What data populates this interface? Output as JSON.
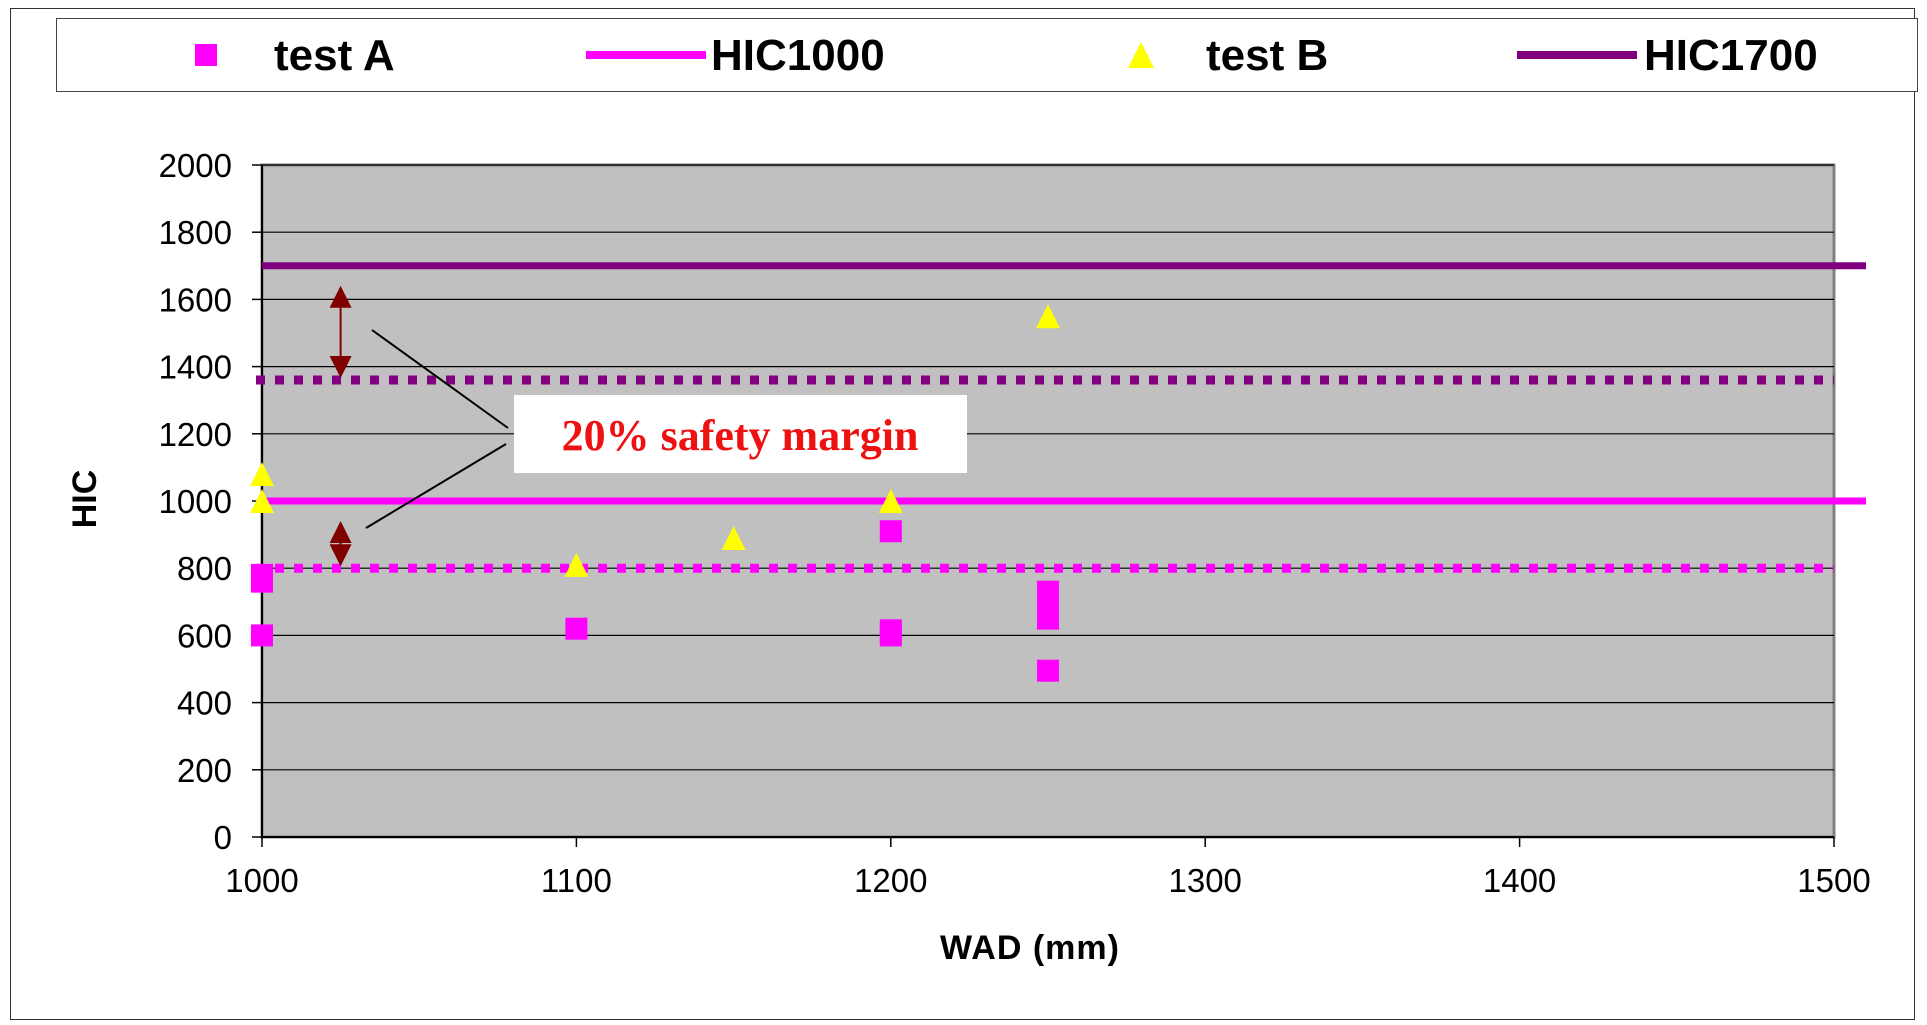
{
  "chart_data": {
    "type": "scatter",
    "xlabel": "WAD (mm)",
    "ylabel": "HIC",
    "xlim": [
      1000,
      1500
    ],
    "ylim": [
      0,
      2000
    ],
    "x_ticks": [
      1000,
      1100,
      1200,
      1300,
      1400,
      1500
    ],
    "y_ticks": [
      0,
      200,
      400,
      600,
      800,
      1000,
      1200,
      1400,
      1600,
      1800,
      2000
    ],
    "grid": "horizontal",
    "legend_position": "top",
    "plot_background": "#c0c0c0",
    "series": [
      {
        "name": "test A",
        "kind": "scatter",
        "marker": "square",
        "color": "#ff00ff",
        "points": [
          [
            1000,
            600
          ],
          [
            1000,
            760
          ],
          [
            1000,
            780
          ],
          [
            1100,
            620
          ],
          [
            1200,
            910
          ],
          [
            1200,
            600
          ],
          [
            1200,
            615
          ],
          [
            1250,
            730
          ],
          [
            1250,
            680
          ],
          [
            1250,
            650
          ],
          [
            1250,
            495
          ]
        ]
      },
      {
        "name": "HIC1000",
        "kind": "line",
        "color": "#ff00ff",
        "y": 1000
      },
      {
        "name": "test B",
        "kind": "scatter",
        "marker": "triangle",
        "color": "#ffff00",
        "points": [
          [
            1000,
            1080
          ],
          [
            1000,
            1000
          ],
          [
            1100,
            810
          ],
          [
            1150,
            890
          ],
          [
            1200,
            1000
          ],
          [
            1250,
            1550
          ]
        ]
      },
      {
        "name": "HIC1700",
        "kind": "line",
        "color": "#800080",
        "y": 1700
      }
    ],
    "reference_lines": [
      {
        "y": 1360,
        "style": "dotted",
        "color": "#800080"
      },
      {
        "y": 800,
        "style": "dotted",
        "color": "#ff00ff"
      }
    ],
    "annotation": {
      "text": "20% safety margin",
      "color": "#ee1111",
      "arrow_color": "#800000",
      "arrows": [
        [
          1700,
          1360
        ],
        [
          1000,
          800
        ]
      ],
      "arrow_x": 1025
    }
  }
}
